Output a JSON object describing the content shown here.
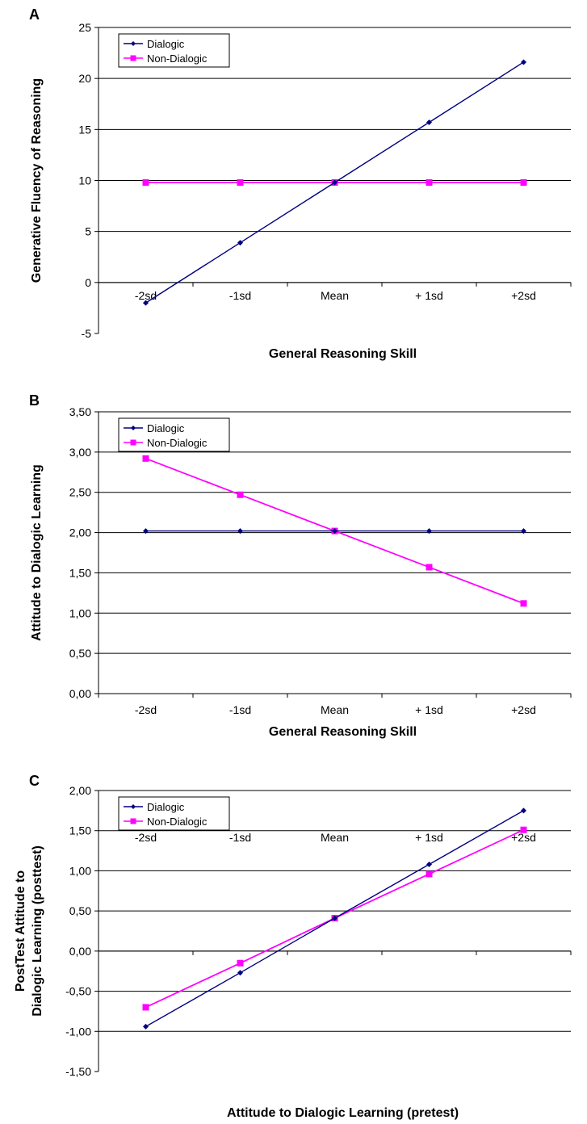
{
  "chart_data": [
    {
      "panel": "A",
      "type": "line",
      "categories": [
        "-2sd",
        "-1sd",
        "Mean",
        "+ 1sd",
        "+2sd"
      ],
      "series": [
        {
          "name": "Dialogic",
          "values": [
            -2.0,
            3.9,
            9.8,
            15.7,
            21.6
          ],
          "color": "#000080",
          "marker": "diamond"
        },
        {
          "name": "Non-Dialogic",
          "values": [
            9.8,
            9.8,
            9.8,
            9.8,
            9.8
          ],
          "color": "#FF00FF",
          "marker": "square"
        }
      ],
      "xlabel": "General Reasoning Skill",
      "ylabel": "Generative Fluency of Reasoning",
      "ylim": [
        -5,
        25
      ],
      "yticks": [
        "-5",
        "0",
        "5",
        "10",
        "15",
        "20",
        "25"
      ],
      "ytick_values": [
        -5,
        0,
        5,
        10,
        15,
        20,
        25
      ],
      "grid": true,
      "legend": "top-left",
      "category_labels_at_zero": true
    },
    {
      "panel": "B",
      "type": "line",
      "categories": [
        "-2sd",
        "-1sd",
        "Mean",
        "+ 1sd",
        "+2sd"
      ],
      "series": [
        {
          "name": "Dialogic",
          "values": [
            2.02,
            2.02,
            2.02,
            2.02,
            2.02
          ],
          "color": "#000080",
          "marker": "diamond"
        },
        {
          "name": "Non-Dialogic",
          "values": [
            2.92,
            2.47,
            2.02,
            1.57,
            1.12
          ],
          "color": "#FF00FF",
          "marker": "square"
        }
      ],
      "xlabel": "General Reasoning Skill",
      "ylabel": "Attitude to Dialogic Learning",
      "ylim": [
        0,
        3.5
      ],
      "yticks": [
        "0,00",
        "0,50",
        "1,00",
        "1,50",
        "2,00",
        "2,50",
        "3,00",
        "3,50"
      ],
      "ytick_values": [
        0,
        0.5,
        1,
        1.5,
        2,
        2.5,
        3,
        3.5
      ],
      "grid": true,
      "legend": "top-left",
      "category_labels_at_zero": false
    },
    {
      "panel": "C",
      "type": "line",
      "categories": [
        "-2sd",
        "-1sd",
        "Mean",
        "+ 1sd",
        "+2sd"
      ],
      "series": [
        {
          "name": "Dialogic",
          "values": [
            -0.94,
            -0.27,
            0.41,
            1.08,
            1.75
          ],
          "color": "#000080",
          "marker": "diamond"
        },
        {
          "name": "Non-Dialogic",
          "values": [
            -0.7,
            -0.15,
            0.41,
            0.96,
            1.51
          ],
          "color": "#FF00FF",
          "marker": "square"
        }
      ],
      "xlabel": "Attitude to Dialogic Learning (pretest)",
      "ylabel_lines": [
        "PostTest Attitude to",
        "Dialogic Learning (posttest)"
      ],
      "ylim": [
        -1.5,
        2.0
      ],
      "yticks": [
        "-1,50",
        "-1,00",
        "-0,50",
        "0,00",
        "0,50",
        "1,00",
        "1,50",
        "2,00"
      ],
      "ytick_values": [
        -1.5,
        -1.0,
        -0.5,
        0.0,
        0.5,
        1.0,
        1.5,
        2.0
      ],
      "grid": true,
      "legend": "top-left",
      "category_labels_at_zero": true
    }
  ]
}
